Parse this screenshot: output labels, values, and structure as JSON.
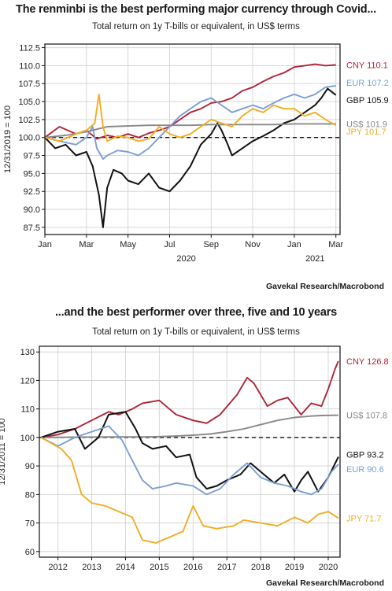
{
  "chart_data": [
    {
      "type": "line",
      "title": "The renminbi is the best performing major currency through Covid...",
      "subtitle": "Total return on 1y T-bills or equivalent, in US$ terms",
      "ylabel": "12/31/2019 = 100",
      "source": "Gavekal Research/Macrobond",
      "ylim": [
        86.5,
        113
      ],
      "yticks": [
        87.5,
        90.0,
        92.5,
        95.0,
        97.5,
        100.0,
        102.5,
        105.0,
        107.5,
        110.0,
        112.5
      ],
      "ytick_labels": [
        "87.5",
        "90.0",
        "92.5",
        "95.0",
        "97.5",
        "100.0",
        "102.5",
        "105.0",
        "107.5",
        "110.0",
        "112.5"
      ],
      "xlim": [
        0,
        14.2
      ],
      "xticks": [
        0,
        2,
        4,
        6,
        8,
        10,
        12,
        14
      ],
      "xtick_labels": [
        "Jan",
        "Mar",
        "May",
        "Jul",
        "Sep",
        "Nov",
        "Jan",
        "Mar"
      ],
      "year_labels": [
        {
          "x": 6.8,
          "label": "2020"
        },
        {
          "x": 13,
          "label": "2021"
        }
      ],
      "reference_line": 100,
      "grid": true,
      "series": [
        {
          "name": "CNY",
          "end_label": "CNY 110.1",
          "color": "#b0243a",
          "x": [
            0,
            0.7,
            1.5,
            2,
            2.5,
            3,
            3.5,
            4,
            4.5,
            5,
            5.5,
            6,
            6.5,
            7,
            7.5,
            8,
            8.5,
            9,
            9.5,
            10,
            10.5,
            11,
            11.5,
            12,
            12.5,
            13,
            13.5,
            14
          ],
          "y": [
            100,
            101.5,
            100.5,
            101,
            99.8,
            100.3,
            100,
            100.5,
            100,
            100.6,
            101,
            101.5,
            102.5,
            103.5,
            104,
            104.8,
            105,
            105.5,
            106.5,
            107,
            107.8,
            108.5,
            109,
            109.8,
            110,
            110.2,
            110,
            110.1
          ]
        },
        {
          "name": "EUR",
          "end_label": "EUR 107.2",
          "color": "#7b9fd2",
          "x": [
            0,
            0.7,
            1.5,
            2,
            2.3,
            2.5,
            2.8,
            3,
            3.5,
            4,
            4.5,
            5,
            5.5,
            6,
            6.5,
            7,
            7.5,
            8,
            8.5,
            9,
            9.5,
            10,
            10.5,
            11,
            11.5,
            12,
            12.5,
            13,
            13.5,
            14
          ],
          "y": [
            100,
            99.5,
            99,
            100,
            101.5,
            98.5,
            97,
            97.5,
            98.2,
            98,
            97.5,
            98.5,
            100,
            101.5,
            103,
            104,
            105,
            105.5,
            104.5,
            103.5,
            104,
            104.5,
            104,
            104.8,
            105.5,
            106,
            105.5,
            106,
            107,
            107.2
          ]
        },
        {
          "name": "GBP",
          "end_label": "GBP 105.9",
          "color": "#111111",
          "x": [
            0,
            0.5,
            1,
            1.5,
            2,
            2.3,
            2.6,
            2.8,
            3,
            3.3,
            3.7,
            4,
            4.5,
            5,
            5.5,
            6,
            6.5,
            7,
            7.5,
            8,
            8.3,
            8.5,
            8.8,
            9,
            9.5,
            10,
            10.5,
            11,
            11.5,
            12,
            12.5,
            13,
            13.3,
            13.6,
            14
          ],
          "y": [
            100,
            98.5,
            99,
            97.5,
            98,
            96,
            92,
            87.5,
            93,
            95.5,
            95,
            94,
            93.5,
            95,
            93,
            92.5,
            94,
            96,
            99,
            100.5,
            102,
            101,
            99,
            97.5,
            98.5,
            99.5,
            100.2,
            101,
            102,
            102.5,
            103.5,
            104.5,
            105.5,
            106.8,
            105.9
          ]
        },
        {
          "name": "US$",
          "end_label": "US$ 101.9",
          "color": "#888888",
          "x": [
            0,
            1,
            2,
            3,
            4,
            5,
            6,
            7,
            8,
            9,
            10,
            11,
            12,
            13,
            14
          ],
          "y": [
            100,
            100.3,
            100.8,
            101.5,
            101.6,
            101.7,
            101.7,
            101.7,
            101.8,
            101.8,
            101.8,
            101.8,
            101.9,
            101.9,
            101.9
          ]
        },
        {
          "name": "JPY",
          "end_label": "JPY 101.7",
          "color": "#f2ad24",
          "x": [
            0,
            0.7,
            1.5,
            2,
            2.4,
            2.6,
            2.8,
            3,
            3.5,
            4,
            4.5,
            5,
            5.5,
            6,
            6.5,
            7,
            7.5,
            8,
            8.5,
            9,
            9.5,
            10,
            10.5,
            11,
            11.5,
            12,
            12.5,
            13,
            13.5,
            14
          ],
          "y": [
            100,
            99.5,
            100.5,
            101,
            102,
            106,
            101.5,
            99.5,
            100.2,
            100,
            99.5,
            99.8,
            101.5,
            100.5,
            100,
            100.5,
            101.5,
            102.5,
            102,
            101.5,
            103,
            104,
            103.5,
            104.5,
            104,
            104,
            103,
            103.5,
            102.5,
            101.7
          ]
        }
      ]
    },
    {
      "type": "line",
      "title": "...and the best performer over three, five and 10 years",
      "subtitle": "Total return on 1y T-bills or equivalent, in US$ terms",
      "ylabel": "12/31/2011 = 100",
      "source": "Gavekal Research/Macrobond",
      "ylim": [
        58,
        132
      ],
      "yticks": [
        60,
        70,
        80,
        90,
        100,
        110,
        120,
        130
      ],
      "ytick_labels": [
        "60",
        "70",
        "80",
        "90",
        "100",
        "110",
        "120",
        "130"
      ],
      "xlim": [
        2011.95,
        2020.85
      ],
      "xticks": [
        2012.5,
        2013.5,
        2014.5,
        2015.5,
        2016.5,
        2017.5,
        2018.5,
        2019.5,
        2020.5
      ],
      "xtick_labels": [
        "2012",
        "2013",
        "2014",
        "2015",
        "2016",
        "2017",
        "2018",
        "2019",
        "2020"
      ],
      "reference_line": 100,
      "grid": true,
      "series": [
        {
          "name": "CNY",
          "end_label": "CNY 126.8",
          "color": "#b0243a",
          "x": [
            2012,
            2012.5,
            2013,
            2013.5,
            2014,
            2014.3,
            2014.7,
            2015,
            2015.5,
            2015.8,
            2016,
            2016.5,
            2016.9,
            2017.3,
            2017.8,
            2018.1,
            2018.3,
            2018.7,
            2019,
            2019.3,
            2019.7,
            2020,
            2020.3,
            2020.5,
            2020.7,
            2020.8
          ],
          "y": [
            100,
            101,
            103,
            106,
            109,
            108,
            110,
            112,
            113,
            110,
            108,
            106,
            105,
            108,
            115,
            121,
            119,
            111,
            113,
            114,
            108,
            112,
            111,
            117,
            124,
            126.8
          ]
        },
        {
          "name": "US$",
          "end_label": "US$ 107.8",
          "color": "#888888",
          "x": [
            2012,
            2013,
            2014,
            2015,
            2015.5,
            2016,
            2016.5,
            2017,
            2017.5,
            2018,
            2018.5,
            2019,
            2019.5,
            2020,
            2020.3,
            2020.8
          ],
          "y": [
            100,
            100.1,
            100.2,
            100.2,
            100.3,
            100.5,
            100.8,
            101.2,
            102,
            103,
            104.5,
            106,
            107,
            107.5,
            107.7,
            107.8
          ]
        },
        {
          "name": "GBP",
          "end_label": "GBP 93.2",
          "color": "#111111",
          "x": [
            2012,
            2012.5,
            2013,
            2013.3,
            2013.7,
            2014,
            2014.5,
            2014.8,
            2015,
            2015.3,
            2015.7,
            2016,
            2016.4,
            2016.6,
            2016.9,
            2017.2,
            2017.5,
            2017.9,
            2018.2,
            2018.5,
            2018.9,
            2019.2,
            2019.5,
            2019.7,
            2019.9,
            2020.2,
            2020.5,
            2020.8
          ],
          "y": [
            100,
            102,
            103,
            96,
            100,
            108,
            109,
            103,
            98,
            96,
            97,
            93,
            94,
            86,
            82,
            83,
            85,
            87,
            91,
            88,
            84,
            87,
            81,
            85,
            88,
            81,
            86,
            93.2
          ]
        },
        {
          "name": "EUR",
          "end_label": "EUR 90.6",
          "color": "#7b9fd2",
          "x": [
            2012,
            2012.5,
            2013,
            2013.5,
            2014,
            2014.4,
            2014.7,
            2015,
            2015.3,
            2015.7,
            2016,
            2016.5,
            2016.9,
            2017.3,
            2017.7,
            2018.1,
            2018.5,
            2018.9,
            2019.3,
            2019.7,
            2020,
            2020.3,
            2020.6,
            2020.8
          ],
          "y": [
            100,
            97,
            100,
            102,
            104,
            99,
            92,
            85,
            82,
            83,
            84,
            83,
            80,
            82,
            87,
            91,
            86,
            84,
            83,
            81,
            80,
            82,
            88,
            90.6
          ]
        },
        {
          "name": "JPY",
          "end_label": "JPY 71.7",
          "color": "#f2ad24",
          "x": [
            2012,
            2012.3,
            2012.6,
            2012.9,
            2013.2,
            2013.5,
            2013.9,
            2014.3,
            2014.7,
            2015,
            2015.4,
            2015.8,
            2016.2,
            2016.5,
            2016.8,
            2017.2,
            2017.7,
            2018,
            2018.5,
            2019,
            2019.5,
            2019.9,
            2020.2,
            2020.5,
            2020.8
          ],
          "y": [
            100,
            98,
            96,
            92,
            80,
            77,
            76,
            74,
            72,
            64,
            63,
            65,
            67,
            76,
            69,
            68,
            69,
            71,
            70,
            69,
            72,
            70,
            73,
            74,
            71.7
          ]
        }
      ]
    }
  ]
}
